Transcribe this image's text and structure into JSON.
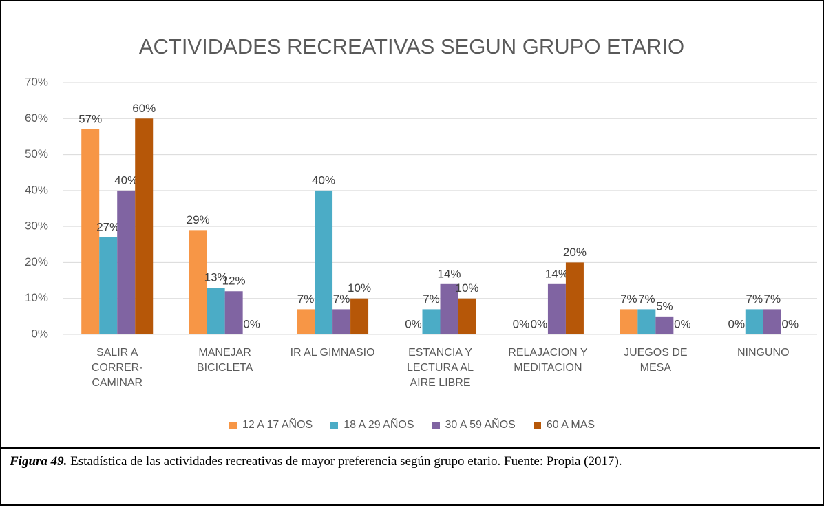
{
  "chart_data": {
    "type": "bar",
    "title": "ACTIVIDADES RECREATIVAS SEGUN GRUPO ETARIO",
    "categories": [
      "SALIR A CORRER-CAMINAR",
      "MANEJAR BICICLETA",
      "IR AL GIMNASIO",
      "ESTANCIA Y LECTURA AL AIRE LIBRE",
      "RELAJACION Y MEDITACION",
      "JUEGOS DE MESA",
      "NINGUNO"
    ],
    "series": [
      {
        "name": "12 A 17 AÑOS",
        "color": "#f79646",
        "values": [
          57,
          29,
          7,
          0,
          0,
          7,
          0
        ],
        "value_labels": [
          "57%",
          "29%",
          "7%",
          "0%",
          "0%",
          "7%",
          "0%"
        ]
      },
      {
        "name": "18 A 29 AÑOS",
        "color": "#4bacc6",
        "values": [
          27,
          13,
          40,
          7,
          0,
          7,
          7
        ],
        "value_labels": [
          "27%",
          "13%",
          "40%",
          "7%",
          "0%",
          "7%",
          "7%"
        ]
      },
      {
        "name": "30 A 59 AÑOS",
        "color": "#8064a2",
        "values": [
          40,
          12,
          7,
          14,
          14,
          5,
          7
        ],
        "value_labels": [
          "40%",
          "12%",
          "7%",
          "14%",
          "14%",
          "5%",
          "7%"
        ]
      },
      {
        "name": "60 A MAS",
        "color": "#b65708",
        "values": [
          60,
          0,
          10,
          10,
          20,
          0,
          0
        ],
        "value_labels": [
          "60%",
          "0%",
          "10%",
          "10%",
          "20%",
          "0%",
          "0%"
        ]
      }
    ],
    "ylim": [
      0,
      70
    ],
    "yticks": [
      {
        "value": 0,
        "label": "0%"
      },
      {
        "value": 10,
        "label": "10%"
      },
      {
        "value": 20,
        "label": "20%"
      },
      {
        "value": 30,
        "label": "30%"
      },
      {
        "value": 40,
        "label": "40%"
      },
      {
        "value": 50,
        "label": "50%"
      },
      {
        "value": 60,
        "label": "60%"
      },
      {
        "value": 70,
        "label": "70%"
      }
    ],
    "grid": true,
    "legend": "bottom"
  },
  "caption": {
    "label": "Figura 49.",
    "text": "Estadística de las actividades recreativas de mayor preferencia según grupo etario. Fuente: Propia (2017)."
  }
}
